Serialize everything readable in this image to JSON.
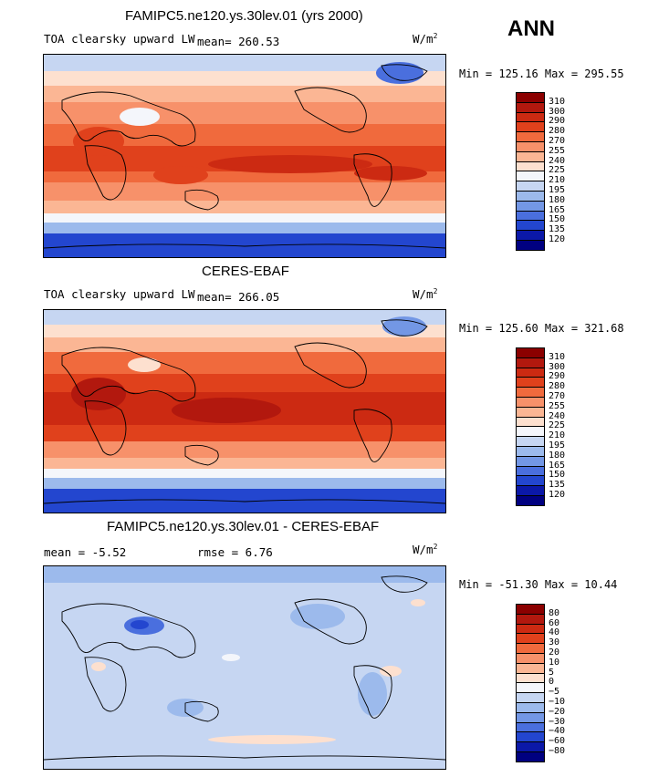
{
  "season": "ANN",
  "unit_base": "W/m",
  "unit_exp": "2",
  "panels": [
    {
      "title": "FAMIPC5.ne120.ys.30lev.01 (yrs 2000)",
      "variable": "TOA clearsky upward LW",
      "mean_text": "mean= 260.53",
      "minmax": "Min = 125.16 Max = 295.55"
    },
    {
      "title": "CERES-EBAF",
      "variable": "TOA clearsky upward LW",
      "mean_text": "mean= 266.05",
      "minmax": "Min = 125.60 Max = 321.68"
    },
    {
      "title": "FAMIPC5.ne120.ys.30lev.01 - CERES-EBAF",
      "mean_text": "mean =   -5.52",
      "rmse_text": "rmse =    6.76",
      "minmax": "Min = -51.30 Max =  10.44"
    }
  ],
  "colorbars": {
    "abs_levels": [
      "310",
      "300",
      "290",
      "280",
      "270",
      "255",
      "240",
      "225",
      "210",
      "195",
      "180",
      "165",
      "150",
      "135",
      "120"
    ],
    "diff_levels": [
      "80",
      "60",
      "40",
      "30",
      "20",
      "10",
      "5",
      "0",
      "−5",
      "−10",
      "−20",
      "−30",
      "−40",
      "−60",
      "−80"
    ],
    "colors": [
      "#8b0000",
      "#b2180e",
      "#cc2a12",
      "#e0411c",
      "#f06a3d",
      "#f7916a",
      "#fbb694",
      "#fde0cf",
      "#f4f6fb",
      "#c6d6f2",
      "#9cbaec",
      "#7397e5",
      "#4a6fde",
      "#2346cf",
      "#0b18a8",
      "#000080"
    ]
  },
  "chart_data": [
    {
      "type": "heatmap",
      "title": "FAMIPC5.ne120.ys.30lev.01 (yrs 2000)",
      "subtitle": "TOA clearsky upward LW",
      "units": "W/m2",
      "mean": 260.53,
      "min": 125.16,
      "max": 295.55,
      "levels": [
        120,
        135,
        150,
        165,
        180,
        195,
        210,
        225,
        240,
        255,
        270,
        280,
        290,
        300,
        310
      ],
      "latitude_band_values": [
        {
          "lat_range": [
            60,
            90
          ],
          "value": 205
        },
        {
          "lat_range": [
            40,
            60
          ],
          "value": 235
        },
        {
          "lat_range": [
            20,
            40
          ],
          "value": 270
        },
        {
          "lat_range": [
            -20,
            20
          ],
          "value": 285
        },
        {
          "lat_range": [
            -40,
            -20
          ],
          "value": 275
        },
        {
          "lat_range": [
            -60,
            -40
          ],
          "value": 235
        },
        {
          "lat_range": [
            -90,
            -60
          ],
          "value": 160
        }
      ]
    },
    {
      "type": "heatmap",
      "title": "CERES-EBAF",
      "subtitle": "TOA clearsky upward LW",
      "units": "W/m2",
      "mean": 266.05,
      "min": 125.6,
      "max": 321.68,
      "levels": [
        120,
        135,
        150,
        165,
        180,
        195,
        210,
        225,
        240,
        255,
        270,
        280,
        290,
        300,
        310
      ],
      "latitude_band_values": [
        {
          "lat_range": [
            60,
            90
          ],
          "value": 210
        },
        {
          "lat_range": [
            40,
            60
          ],
          "value": 240
        },
        {
          "lat_range": [
            20,
            40
          ],
          "value": 280
        },
        {
          "lat_range": [
            -20,
            20
          ],
          "value": 292
        },
        {
          "lat_range": [
            -40,
            -20
          ],
          "value": 282
        },
        {
          "lat_range": [
            -60,
            -40
          ],
          "value": 240
        },
        {
          "lat_range": [
            -90,
            -60
          ],
          "value": 165
        }
      ]
    },
    {
      "type": "heatmap",
      "title": "FAMIPC5.ne120.ys.30lev.01 - CERES-EBAF",
      "units": "W/m2",
      "mean": -5.52,
      "rmse": 6.76,
      "min": -51.3,
      "max": 10.44,
      "levels": [
        -80,
        -60,
        -40,
        -30,
        -20,
        -10,
        -5,
        0,
        5,
        10,
        20,
        30,
        40,
        60,
        80
      ],
      "latitude_band_values": [
        {
          "lat_range": [
            60,
            90
          ],
          "value": -6
        },
        {
          "lat_range": [
            20,
            60
          ],
          "value": -7
        },
        {
          "lat_range": [
            -20,
            20
          ],
          "value": -6
        },
        {
          "lat_range": [
            -60,
            -20
          ],
          "value": -5
        },
        {
          "lat_range": [
            -90,
            -60
          ],
          "value": -3
        }
      ]
    }
  ]
}
